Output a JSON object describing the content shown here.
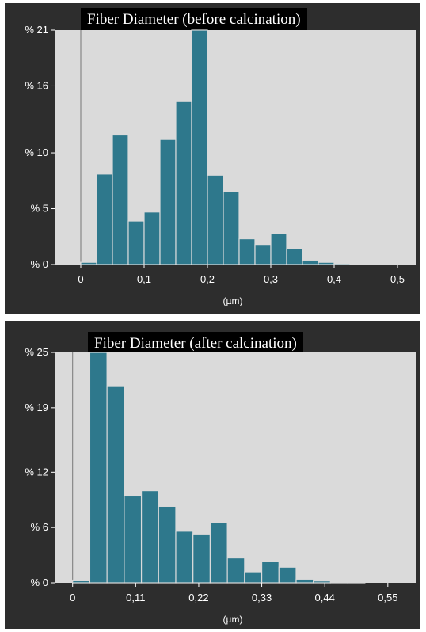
{
  "chart_data": [
    {
      "type": "bar",
      "title": "Fiber Diameter (before calcination)",
      "xlabel": "(µm)",
      "ylabel": "",
      "bin_width": 0.025,
      "x": [
        0.0,
        0.025,
        0.05,
        0.075,
        0.1,
        0.125,
        0.15,
        0.175,
        0.2,
        0.225,
        0.25,
        0.275,
        0.3,
        0.325,
        0.35,
        0.375,
        0.4,
        0.425,
        0.45,
        0.475,
        0.5
      ],
      "values": [
        0.2,
        8.1,
        11.6,
        3.9,
        4.7,
        11.2,
        14.6,
        21.0,
        8.0,
        6.5,
        2.3,
        1.8,
        2.8,
        1.4,
        0.4,
        0.2,
        0.1,
        0,
        0,
        0,
        0
      ],
      "xlim": [
        -0.04,
        0.53
      ],
      "ylim": [
        0,
        21
      ],
      "yticks": [
        0,
        5,
        10,
        16,
        21
      ],
      "ytick_labels": [
        "% 0",
        "% 5",
        "% 10",
        "% 16",
        "% 21"
      ],
      "xticks": [
        0,
        0.1,
        0.2,
        0.3,
        0.4,
        0.5
      ],
      "xtick_labels": [
        "0",
        "0,1",
        "0,2",
        "0,3",
        "0,4",
        "0,5"
      ],
      "colors": {
        "bar": "#2e788c",
        "edge": "#dadada",
        "plot_bg": "#dadada",
        "frame": "#2d2d2d"
      },
      "grid": false
    },
    {
      "type": "bar",
      "title": "Fiber Diameter (after calcination)",
      "xlabel": "(µm)",
      "ylabel": "",
      "bin_width": 0.03,
      "x": [
        -0.0,
        0.03,
        0.06,
        0.09,
        0.12,
        0.15,
        0.18,
        0.21,
        0.24,
        0.27,
        0.3,
        0.33,
        0.36,
        0.39,
        0.42,
        0.45,
        0.48,
        0.51,
        0.54
      ],
      "values": [
        0.3,
        25.0,
        21.3,
        9.5,
        10.0,
        8.3,
        5.6,
        5.3,
        6.5,
        2.7,
        1.2,
        2.3,
        1.7,
        0.4,
        0.2,
        0.1,
        0.1,
        0,
        0
      ],
      "xlim": [
        -0.03,
        0.6
      ],
      "ylim": [
        0,
        25
      ],
      "yticks": [
        0,
        6,
        12,
        19,
        25
      ],
      "ytick_labels": [
        "% 0",
        "% 6",
        "% 12",
        "% 19",
        "% 25"
      ],
      "xticks": [
        0,
        0.11,
        0.22,
        0.33,
        0.44,
        0.55
      ],
      "xtick_labels": [
        "0",
        "0,11",
        "0,22",
        "0,33",
        "0,44",
        "0,55"
      ],
      "colors": {
        "bar": "#2e788c",
        "edge": "#dadada",
        "plot_bg": "#dadada",
        "frame": "#2d2d2d"
      },
      "grid": false
    }
  ]
}
